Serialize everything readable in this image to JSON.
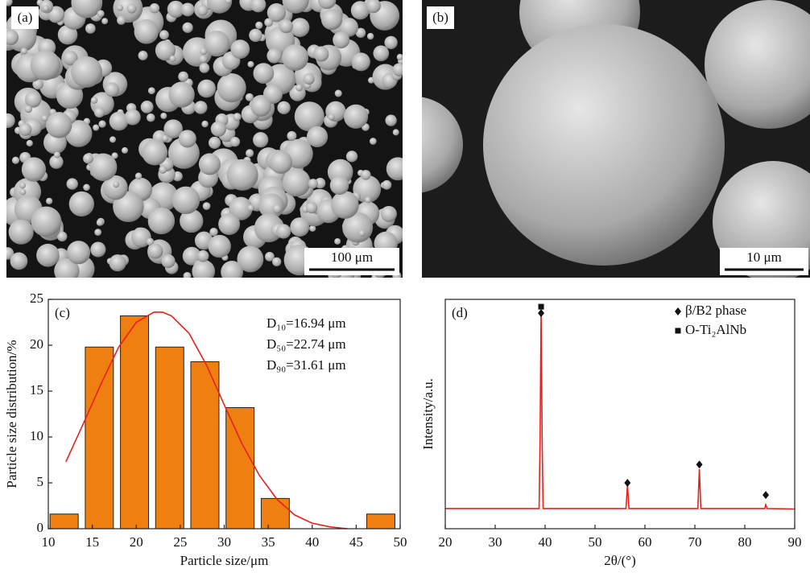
{
  "images": [
    {
      "label": "(a)",
      "scale_bar": "100 μm"
    },
    {
      "label": "(b)",
      "scale_bar": "10 μm"
    }
  ],
  "chart_data": [
    {
      "type": "bar",
      "label": "(c)",
      "x_label": "Particle size/μm",
      "y_label": "Particle size distribution/%",
      "xlim": [
        10,
        50
      ],
      "xticks": [
        10,
        15,
        20,
        25,
        30,
        35,
        40,
        45,
        50
      ],
      "ylim": [
        0,
        25
      ],
      "yticks": [
        0,
        5,
        10,
        15,
        20,
        25
      ],
      "annotations": [
        "D₁₀=16.94 μm",
        "D₅₀=22.74 μm",
        "D₉₀=31.61 μm"
      ],
      "series": [
        {
          "type": "bar",
          "color": "#f07f12",
          "x": [
            11.8,
            15.8,
            19.8,
            23.8,
            27.8,
            31.8,
            35.8,
            47.8
          ],
          "values": [
            1.6,
            19.8,
            23.2,
            19.8,
            18.2,
            13.2,
            3.3,
            1.6
          ]
        },
        {
          "type": "line",
          "color": "#e8201a",
          "x": [
            12,
            14,
            16,
            18,
            20,
            22,
            23,
            24,
            26,
            28,
            30,
            32,
            34,
            36,
            38,
            40,
            42,
            44
          ],
          "values": [
            7.3,
            11.5,
            15.8,
            19.8,
            22.5,
            23.6,
            23.6,
            23.2,
            21.3,
            17.8,
            13.5,
            9.3,
            5.8,
            3.2,
            1.5,
            0.6,
            0.2,
            0
          ]
        }
      ]
    },
    {
      "type": "line",
      "label": "(d)",
      "x_label": "2θ/(°)",
      "y_label": "Intensity/a.u.",
      "xlim": [
        20,
        90
      ],
      "xticks": [
        20,
        30,
        40,
        50,
        60,
        70,
        80,
        90
      ],
      "ylim": [
        0,
        100
      ],
      "legend": "upper right",
      "series": [
        {
          "type": "line",
          "color": "#e8201a",
          "x": [
            20,
            38.8,
            39.0,
            39.2,
            39.4,
            39.6,
            56.2,
            56.5,
            56.8,
            70.6,
            70.9,
            71.2,
            84.0,
            84.2,
            84.5,
            90
          ],
          "values": [
            8.8,
            8.8,
            40,
            95.4,
            40,
            8.8,
            8.8,
            19,
            8.8,
            8.8,
            26,
            8.8,
            8.8,
            10.5,
            8.8,
            8.6
          ]
        },
        {
          "type": "scatter",
          "name": "β/B2 phase",
          "marker": "diamond",
          "color": "#111",
          "x": [
            39.2,
            56.5,
            70.9,
            84.2
          ],
          "values": [
            94,
            20,
            28,
            14.7
          ]
        },
        {
          "type": "scatter",
          "name": "O-Ti₂AlNb",
          "marker": "square",
          "color": "#111",
          "x": [
            39.2
          ],
          "values": [
            96.8
          ]
        }
      ]
    }
  ]
}
